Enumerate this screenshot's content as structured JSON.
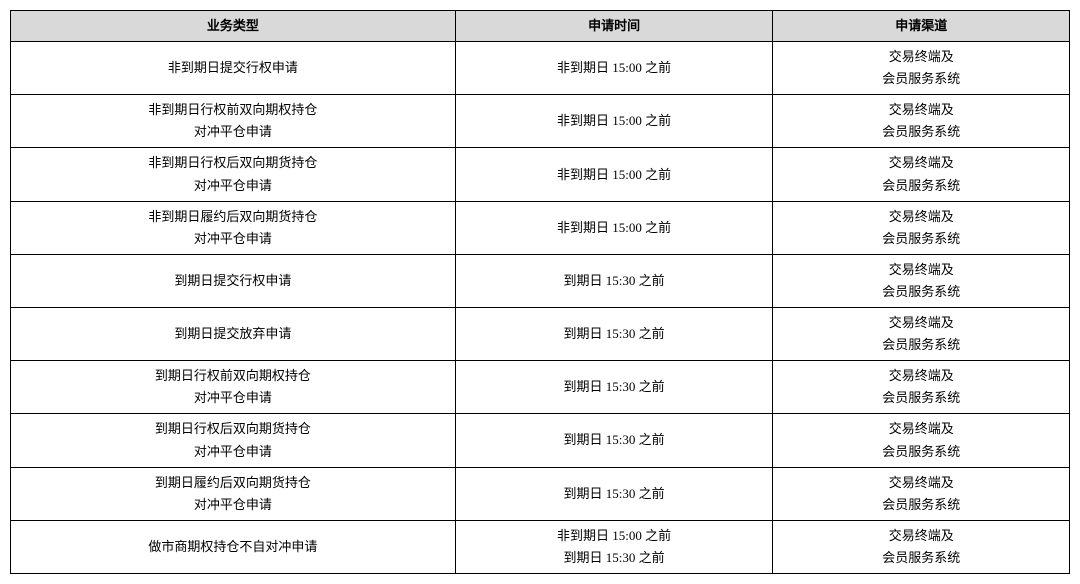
{
  "table": {
    "type": "table",
    "header_bg": "#d9d9d9",
    "border_color": "#000000",
    "font_size": 13,
    "columns": [
      {
        "key": "type",
        "label": "业务类型",
        "width_pct": 42
      },
      {
        "key": "time",
        "label": "申请时间",
        "width_pct": 30
      },
      {
        "key": "channel",
        "label": "申请渠道",
        "width_pct": 28
      }
    ],
    "rows": [
      {
        "type": "非到期日提交行权申请",
        "time": "非到期日 15:00 之前",
        "channel": "交易终端及\n会员服务系统"
      },
      {
        "type": "非到期日行权前双向期权持仓\n对冲平仓申请",
        "time": "非到期日 15:00 之前",
        "channel": "交易终端及\n会员服务系统"
      },
      {
        "type": "非到期日行权后双向期货持仓\n对冲平仓申请",
        "time": "非到期日 15:00 之前",
        "channel": "交易终端及\n会员服务系统"
      },
      {
        "type": "非到期日履约后双向期货持仓\n对冲平仓申请",
        "time": "非到期日 15:00 之前",
        "channel": "交易终端及\n会员服务系统"
      },
      {
        "type": "到期日提交行权申请",
        "time": "到期日 15:30 之前",
        "channel": "交易终端及\n会员服务系统"
      },
      {
        "type": "到期日提交放弃申请",
        "time": "到期日 15:30 之前",
        "channel": "交易终端及\n会员服务系统"
      },
      {
        "type": "到期日行权前双向期权持仓\n对冲平仓申请",
        "time": "到期日 15:30 之前",
        "channel": "交易终端及\n会员服务系统"
      },
      {
        "type": "到期日行权后双向期货持仓\n对冲平仓申请",
        "time": "到期日 15:30 之前",
        "channel": "交易终端及\n会员服务系统"
      },
      {
        "type": "到期日履约后双向期货持仓\n对冲平仓申请",
        "time": "到期日 15:30 之前",
        "channel": "交易终端及\n会员服务系统"
      },
      {
        "type": "做市商期权持仓不自对冲申请",
        "time": "非到期日 15:00 之前\n到期日 15:30 之前",
        "channel": "交易终端及\n会员服务系统"
      }
    ]
  }
}
